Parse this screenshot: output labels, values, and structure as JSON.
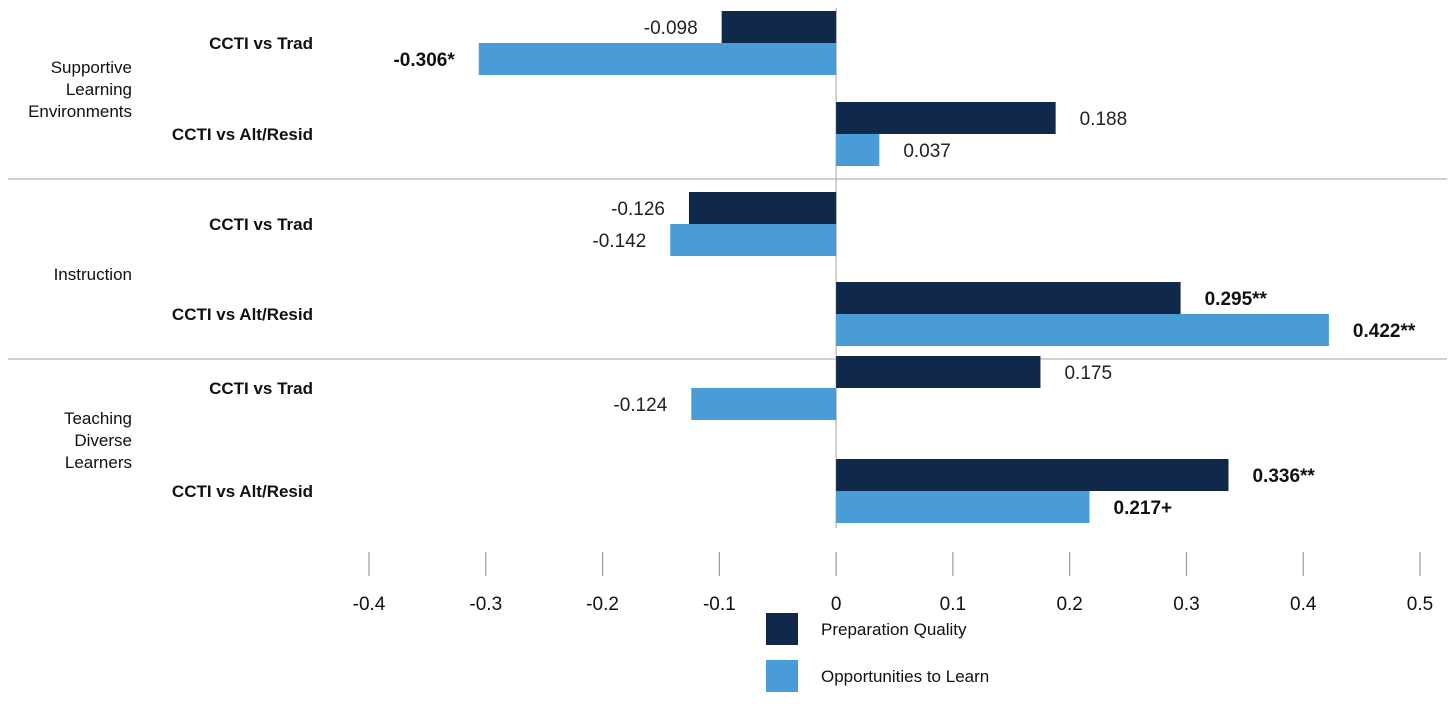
{
  "chart_data": {
    "type": "bar",
    "orientation": "horizontal",
    "xlim": [
      -0.4,
      0.5
    ],
    "x_ticks": [
      "-0.4",
      "-0.3",
      "-0.2",
      "-0.1",
      "0",
      "0.1",
      "0.2",
      "0.3",
      "0.4",
      "0.5"
    ],
    "x_tick_values": [
      -0.4,
      -0.3,
      -0.2,
      -0.1,
      0,
      0.1,
      0.2,
      0.3,
      0.4,
      0.5
    ],
    "grid": false,
    "legend_position": "bottom",
    "series": [
      {
        "name": "Preparation Quality",
        "color": "#10284a"
      },
      {
        "name": "Opportunities to Learn",
        "color": "#4a9cd6"
      }
    ],
    "groups": [
      {
        "label": "Supportive\nLearning\nEnvironments",
        "comparisons": [
          {
            "label": "CCTI vs Trad",
            "values": [
              -0.098,
              -0.306
            ],
            "value_labels": [
              "-0.098",
              "-0.306*"
            ],
            "bold": [
              false,
              true
            ]
          },
          {
            "label": "CCTI vs Alt/Resid",
            "values": [
              0.188,
              0.037
            ],
            "value_labels": [
              "0.188",
              "0.037"
            ],
            "bold": [
              false,
              false
            ]
          }
        ]
      },
      {
        "label": "Instruction",
        "comparisons": [
          {
            "label": "CCTI vs Trad",
            "values": [
              -0.126,
              -0.142
            ],
            "value_labels": [
              "-0.126",
              "-0.142"
            ],
            "bold": [
              false,
              false
            ]
          },
          {
            "label": "CCTI vs Alt/Resid",
            "values": [
              0.295,
              0.422
            ],
            "value_labels": [
              "0.295**",
              "0.422**"
            ],
            "bold": [
              true,
              true
            ]
          }
        ]
      },
      {
        "label": "Teaching\nDiverse\nLearners",
        "comparisons": [
          {
            "label": "CCTI vs Trad",
            "values": [
              0.175,
              -0.124
            ],
            "value_labels": [
              "0.175",
              "-0.124"
            ],
            "bold": [
              false,
              false
            ]
          },
          {
            "label": "CCTI vs Alt/Resid",
            "values": [
              0.336,
              0.217
            ],
            "value_labels": [
              "0.336**",
              "0.217+"
            ],
            "bold": [
              true,
              true
            ]
          }
        ]
      }
    ]
  }
}
